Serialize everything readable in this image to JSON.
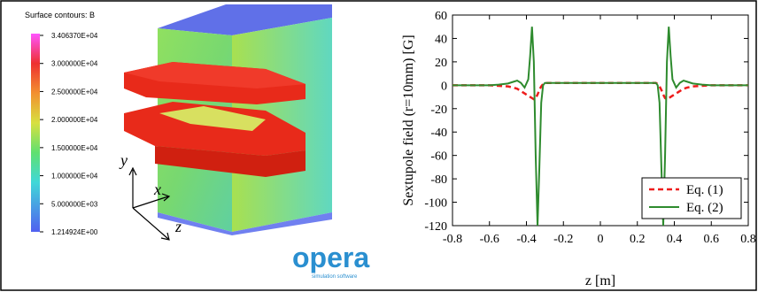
{
  "simulation": {
    "colorbar_title": "Surface contours: B",
    "colorbar_labels": [
      "3.406370E+04",
      "3.000000E+04",
      "2.500000E+04",
      "2.000000E+04",
      "1.500000E+04",
      "1.000000E+04",
      "5.000000E+03",
      "1.214924E+00"
    ],
    "triad_labels": [
      "y",
      "x",
      "z"
    ],
    "logo": "opera",
    "logo_subtitle": "simulation software"
  },
  "chart_data": {
    "type": "line",
    "xlabel": "z [m]",
    "ylabel": "Sextupole field (r=10mm) [G]",
    "x": [
      -0.8,
      -0.6,
      -0.55,
      -0.5,
      -0.47,
      -0.45,
      -0.43,
      -0.41,
      -0.39,
      -0.38,
      -0.37,
      -0.36,
      -0.35,
      -0.34,
      -0.33,
      -0.32,
      -0.31,
      -0.3,
      -0.2,
      0,
      0.2,
      0.3,
      0.31,
      0.32,
      0.33,
      0.34,
      0.35,
      0.36,
      0.37,
      0.38,
      0.39,
      0.41,
      0.43,
      0.45,
      0.47,
      0.5,
      0.55,
      0.6,
      0.8
    ],
    "series": [
      {
        "name": "Eq. (1)",
        "color": "#ee1c1c",
        "dash": true,
        "values": [
          0,
          0,
          -0.5,
          -1,
          -2,
          -3,
          -5,
          -7,
          -9,
          -10,
          -11,
          -12,
          -11,
          -8,
          -4,
          -1,
          1,
          2,
          2,
          2,
          2,
          2,
          1,
          -1,
          -4,
          -8,
          -11,
          -12,
          -11,
          -10,
          -9,
          -7,
          -5,
          -3,
          -2,
          -1,
          -0.5,
          0,
          0
        ]
      },
      {
        "name": "Eq. (2)",
        "color": "#2e8b2e",
        "dash": false,
        "values": [
          0,
          0,
          0.5,
          1.5,
          3,
          4,
          2,
          -2,
          5,
          25,
          50,
          20,
          -60,
          -120,
          -70,
          -15,
          0,
          2,
          2,
          2,
          2,
          2,
          0,
          -15,
          -70,
          -120,
          -60,
          20,
          50,
          25,
          5,
          -2,
          2,
          4,
          3,
          1.5,
          0.5,
          0,
          0
        ]
      }
    ],
    "xlim": [
      -0.8,
      0.8
    ],
    "xticks": [
      -0.8,
      -0.6,
      -0.4,
      -0.2,
      0,
      0.2,
      0.4,
      0.6,
      0.8
    ],
    "ylim": [
      -120,
      60
    ],
    "yticks": [
      -120,
      -100,
      -80,
      -60,
      -40,
      -20,
      0,
      20,
      40,
      60
    ],
    "grid": false,
    "legend": "lower right"
  }
}
